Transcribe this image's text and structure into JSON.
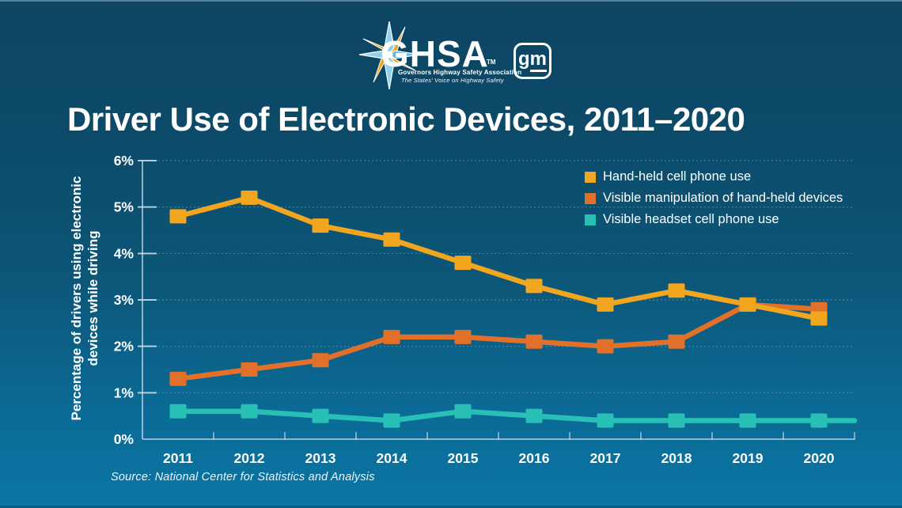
{
  "header": {
    "ghsa_logo": {
      "name": "GHSA",
      "tm": "TM",
      "subtitle": "Governors Highway Safety Association",
      "tagline": "The States' Voice on Highway Safety",
      "star_blue": "#8ed2ef",
      "star_gold": "#f2a51f"
    },
    "gm_logo": {
      "g": "g",
      "m": "m"
    }
  },
  "title": "Driver Use of Electronic Devices, 2011–2020",
  "source": "Source: National Center for Statistics and Analysis",
  "colors": {
    "background_top": "#0d4562",
    "background_bottom": "#0b76a4",
    "axis": "#cde2ed",
    "grid": "#bcd9e6",
    "text": "#ffffff"
  },
  "chart_data": {
    "type": "line",
    "title": "Driver Use of Electronic Devices, 2011–2020",
    "categories": [
      "2011",
      "2012",
      "2013",
      "2014",
      "2015",
      "2016",
      "2017",
      "2018",
      "2019",
      "2020"
    ],
    "series": [
      {
        "name": "Hand-held cell phone use",
        "color": "#f2a51f",
        "values": [
          4.8,
          5.2,
          4.6,
          4.3,
          3.8,
          3.3,
          2.9,
          3.2,
          2.9,
          2.6
        ]
      },
      {
        "name": "Visible manipulation of hand-held devices",
        "color": "#e0702a",
        "values": [
          1.3,
          1.5,
          1.7,
          2.2,
          2.2,
          2.1,
          2.0,
          2.1,
          2.9,
          2.8
        ]
      },
      {
        "name": "Visible headset cell phone use",
        "color": "#28bfb4",
        "values": [
          0.6,
          0.6,
          0.5,
          0.4,
          0.6,
          0.5,
          0.4,
          0.4,
          0.4,
          0.4
        ],
        "extend_to_right_edge": true
      }
    ],
    "xlabel": "",
    "ylabel": "Percentage of drivers using electronic devices while driving",
    "ylabel_lines": [
      "Percentage of drivers using electronic",
      "devices while driving"
    ],
    "yticks": [
      "0%",
      "1%",
      "2%",
      "3%",
      "4%",
      "5%",
      "6%"
    ],
    "ylim": [
      0,
      6
    ],
    "grid": "horizontal-dashed",
    "legend_position": "top-right-inside",
    "marker": "square"
  }
}
